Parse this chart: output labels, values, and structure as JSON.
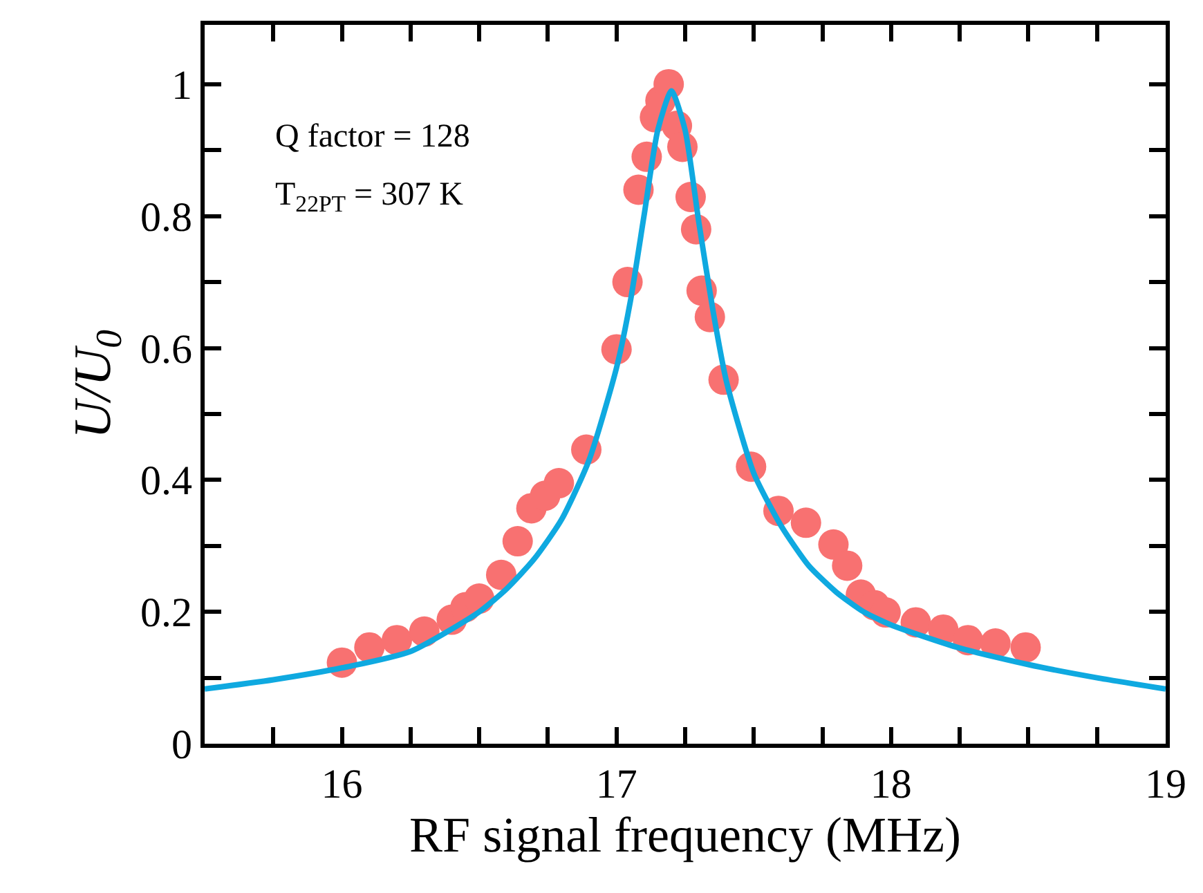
{
  "chart_data": {
    "type": "scatter",
    "xlabel": "RF signal frequency (MHz)",
    "ylabel": "U/U$_{0}$",
    "annotations": [
      "Q factor = 128",
      "T$_{22PT}$ = 307 K"
    ],
    "xlim": [
      15.5,
      19
    ],
    "ylim": [
      0,
      1.09
    ],
    "xticks": [
      {
        "value": 15.5,
        "label": null
      },
      {
        "value": 15.75,
        "label": null
      },
      16,
      {
        "value": 16.25,
        "label": null
      },
      {
        "value": 16.5,
        "label": null
      },
      {
        "value": 16.75,
        "label": null
      },
      17,
      {
        "value": 17.25,
        "label": null
      },
      {
        "value": 17.5,
        "label": null
      },
      {
        "value": 17.75,
        "label": null
      },
      18,
      {
        "value": 18.25,
        "label": null
      },
      {
        "value": 18.5,
        "label": null
      },
      {
        "value": 18.75,
        "label": null
      },
      19
    ],
    "yticks": [
      0,
      {
        "value": 0.1,
        "label": null
      },
      0.2,
      {
        "value": 0.3,
        "label": null
      },
      0.4,
      {
        "value": 0.5,
        "label": null
      },
      0.6,
      {
        "value": 0.7,
        "label": null
      },
      0.8,
      {
        "value": 0.9,
        "label": null
      },
      1
    ],
    "grid": false,
    "legend": false,
    "series": [
      {
        "type": "line",
        "color": "#0fa9e0",
        "line_style": "solid",
        "marker": "none",
        "x": [
          15.5,
          15.75,
          16.0,
          16.25,
          16.5,
          16.6,
          16.7,
          16.8,
          16.9,
          17.0,
          17.05,
          17.1,
          17.15,
          17.2,
          17.25,
          17.3,
          17.35,
          17.4,
          17.5,
          17.6,
          17.7,
          17.8,
          17.9,
          18.0,
          18.25,
          18.5,
          18.75,
          19.0
        ],
        "values": [
          0.083,
          0.097,
          0.115,
          0.14,
          0.2,
          0.235,
          0.28,
          0.34,
          0.43,
          0.57,
          0.67,
          0.8,
          0.93,
          0.99,
          0.93,
          0.79,
          0.66,
          0.55,
          0.41,
          0.33,
          0.27,
          0.23,
          0.2,
          0.18,
          0.145,
          0.12,
          0.1,
          0.083
        ]
      },
      {
        "color": "#f87171",
        "marker": "circle",
        "x": [
          16.0,
          16.1,
          16.2,
          16.3,
          16.4,
          16.45,
          16.5,
          16.58,
          16.64,
          16.69,
          16.74,
          16.79,
          16.89,
          17.0,
          17.04,
          17.08,
          17.11,
          17.14,
          17.16,
          17.19,
          17.22,
          17.24,
          17.27,
          17.29,
          17.31,
          17.34,
          17.39,
          17.49,
          17.59,
          17.69,
          17.79,
          17.84,
          17.89,
          17.94,
          17.98,
          18.09,
          18.19,
          18.28,
          18.38,
          18.49
        ],
        "values": [
          0.123,
          0.146,
          0.157,
          0.17,
          0.188,
          0.207,
          0.22,
          0.256,
          0.307,
          0.357,
          0.376,
          0.395,
          0.446,
          0.598,
          0.7,
          0.84,
          0.89,
          0.95,
          0.975,
          1.0,
          0.937,
          0.905,
          0.829,
          0.78,
          0.687,
          0.647,
          0.552,
          0.42,
          0.353,
          0.335,
          0.302,
          0.27,
          0.226,
          0.21,
          0.199,
          0.184,
          0.173,
          0.157,
          0.152,
          0.146
        ]
      }
    ]
  }
}
